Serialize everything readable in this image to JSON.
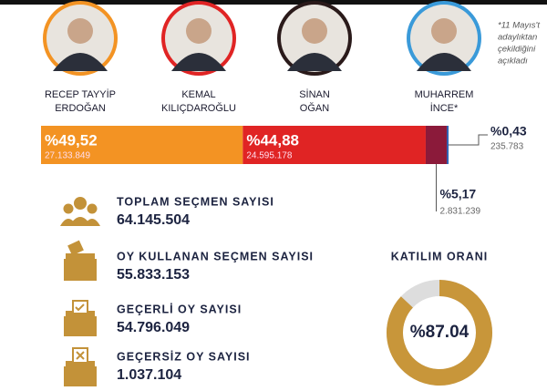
{
  "header": {
    "note_lines": [
      "*11 Mayıs't",
      "adaylıktan",
      "çekildiğini",
      "açıkladı"
    ]
  },
  "candidates": [
    {
      "name_lines": [
        "RECEP TAYYİP",
        "ERDOĞAN"
      ],
      "share": 49.52,
      "share_label": "%49,52",
      "votes": "27.133.849",
      "color": "#f39323",
      "ring_color": "#f39323"
    },
    {
      "name_lines": [
        "KEMAL",
        "KILIÇDAROĞLU"
      ],
      "share": 44.88,
      "share_label": "%44,88",
      "votes": "24.595.178",
      "color": "#e02424",
      "ring_color": "#e02424"
    },
    {
      "name_lines": [
        "SİNAN",
        "OĞAN"
      ],
      "share": 5.17,
      "share_label": "%5,17",
      "votes": "2.831.239",
      "color": "#8b1a3a",
      "ring_color": "#2a1a1a"
    },
    {
      "name_lines": [
        "MUHARREM",
        "İNCE*"
      ],
      "share": 0.43,
      "share_label": "%0,43",
      "votes": "235.783",
      "color": "#2a5db0",
      "ring_color": "#3a9ad9"
    }
  ],
  "stats": [
    {
      "label": "TOPLAM SEÇMEN SAYISI",
      "value": "64.145.504"
    },
    {
      "label": "OY KULLANAN SEÇMEN SAYISI",
      "value": "55.833.153"
    },
    {
      "label": "GEÇERLİ OY SAYISI",
      "value": "54.796.049"
    },
    {
      "label": "GEÇERSİZ OY SAYISI",
      "value": "1.037.104"
    }
  ],
  "turnout": {
    "title": "KATILIM ORANI",
    "value": 87.04,
    "label": "%87.04",
    "color": "#c8963a"
  }
}
